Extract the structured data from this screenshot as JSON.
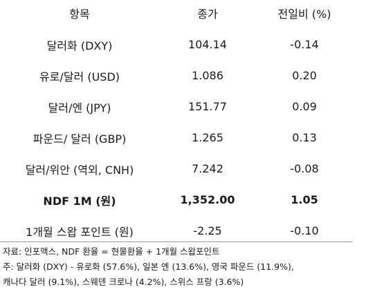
{
  "table": {
    "headers": [
      "항목",
      "종가",
      "전일비 (%)"
    ],
    "rows": [
      {
        "name": "달러화 (DXY)",
        "close": "104.14",
        "change": "-0.14"
      },
      {
        "name": "유로/달러 (USD)",
        "close": "1.086",
        "change": "0.20"
      },
      {
        "name": "달러/엔 (JPY)",
        "close": "151.77",
        "change": "0.09"
      },
      {
        "name": "파운드/ 달러 (GBP)",
        "close": "1.265",
        "change": "0.13"
      },
      {
        "name": "달러/위안 (역외, CNH)",
        "close": "7.242",
        "change": "-0.08"
      },
      {
        "name": "NDF 1M (원)",
        "close": "1,352.00",
        "change": "1.05"
      },
      {
        "name": "1개월 스왑 포인트 (원)",
        "close": "-2.25",
        "change": "-0.10"
      }
    ]
  },
  "notes": {
    "source": "자료: 인포맥스, NDF 환율 = 현물환율 + 1개월 스왑포인트",
    "note_line1": "주: 달러화 (DXY) - 유로화 (57.6%), 일본 엔 (13.6%), 영국 파운드 (11.9%),",
    "note_line2": "캐나다 달러 (9.1%), 스웨덴 크로나 (4.2%), 스위스 프랑 (3.6%)"
  }
}
